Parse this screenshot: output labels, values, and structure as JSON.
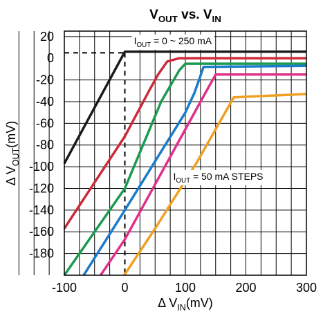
{
  "chart_data": {
    "type": "line",
    "title": {
      "main": "V",
      "sub1": "OUT",
      "mid": " vs. V",
      "sub2": "IN"
    },
    "xlabel": {
      "pre": "Δ V",
      "sub": "IN",
      "post": "(mV)"
    },
    "ylabel": {
      "pre": "Δ V",
      "sub": "OUT",
      "post": "(mV)"
    },
    "xlim": [
      -100,
      300
    ],
    "ylim": [
      -200,
      25
    ],
    "xticks": [
      "-100",
      "0",
      "100",
      "200",
      "300"
    ],
    "xtick_values": [
      -100,
      0,
      100,
      200,
      300
    ],
    "yticks": [
      "20",
      "0",
      "-20",
      "-40",
      "-60",
      "-80",
      "-100",
      "-120",
      "-140",
      "-160",
      "-180"
    ],
    "ytick_values": [
      20,
      0,
      -20,
      -40,
      -60,
      -80,
      -100,
      -120,
      -140,
      -160,
      -180
    ],
    "grid": true,
    "annotations": [
      {
        "pre": "I",
        "sub": "OUT",
        "post": " = 0 ~ 250 mA",
        "x": 15,
        "y": 13
      },
      {
        "pre": "I",
        "sub": "OUT",
        "post": " = 50 mA STEPS",
        "x": 80,
        "y": -112
      }
    ],
    "reference_lines": {
      "x": 0,
      "y": 5,
      "x_to": 0,
      "y_to": -100
    },
    "series": [
      {
        "color": "#1a1a1a",
        "x": [
          -100,
          0,
          300
        ],
        "y": [
          -97,
          6,
          6
        ]
      },
      {
        "color": "#cc2a3a",
        "x": [
          -100,
          0,
          40,
          55,
          70,
          90,
          300
        ],
        "y": [
          -157,
          -72,
          -30,
          -15,
          -3,
          0,
          0
        ]
      },
      {
        "color": "#1a9a50",
        "x": [
          -100,
          0,
          60,
          90,
          100,
          300
        ],
        "y": [
          -200,
          -120,
          -40,
          -11,
          -5,
          -5
        ]
      },
      {
        "color": "#1a7acc",
        "x": [
          -68,
          0,
          100,
          115,
          130,
          300
        ],
        "y": [
          -200,
          -140,
          -50,
          -32,
          -8,
          -7
        ]
      },
      {
        "color": "#e0308a",
        "x": [
          -40,
          0,
          130,
          150,
          300
        ],
        "y": [
          -200,
          -167,
          -35,
          -15,
          -15
        ]
      },
      {
        "color": "#f0a020",
        "x": [
          -1,
          50,
          120,
          180,
          300
        ],
        "y": [
          -200,
          -157,
          -95,
          -36,
          -33
        ]
      }
    ]
  }
}
